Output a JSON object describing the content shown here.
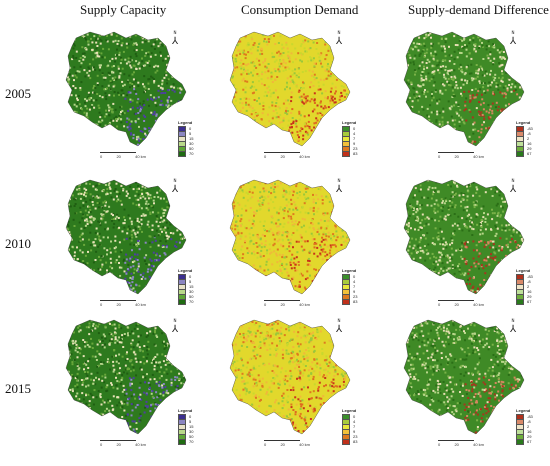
{
  "columns": [
    "Supply Capacity",
    "Consumption Demand",
    "Supply-demand Difference"
  ],
  "years": [
    "2005",
    "2010",
    "2015"
  ],
  "north_label": "N",
  "north_arrow_glyph": "⅄",
  "legend_title": "Legend",
  "scale_labels": [
    "0",
    "20",
    "40 km"
  ],
  "legends": {
    "supply": {
      "values": [
        "0",
        "5",
        "15",
        "30",
        "50",
        "70"
      ],
      "colors": [
        "#3c2f8f",
        "#8b86c2",
        "#e8e3c8",
        "#b9d98a",
        "#5ea636",
        "#1f6b12"
      ]
    },
    "demand": {
      "values": [
        "0",
        "4",
        "7",
        "9",
        "23",
        "83"
      ],
      "colors": [
        "#3a8f2a",
        "#a8cc3c",
        "#e8e83a",
        "#f2c13a",
        "#de7a1f",
        "#c0301a"
      ]
    },
    "diff": {
      "values": [
        "-83",
        "-8",
        "2",
        "16",
        "29",
        "67"
      ],
      "colors": [
        "#b0301c",
        "#d98a6a",
        "#f1e6c8",
        "#bfe09a",
        "#6fae3c",
        "#2a7a1c"
      ]
    }
  },
  "map_palettes": {
    "supply": {
      "base": "#2e7a1e",
      "speck": [
        "#e9e2b8",
        "#b6d58c",
        "#6aa83c",
        "#1f5e12"
      ],
      "hot": [
        "#4f3fa0",
        "#8c86c4"
      ]
    },
    "demand": {
      "base": "#e2d82c",
      "speck": [
        "#c9d82e",
        "#f0b83a",
        "#de7a1f",
        "#9ac83a"
      ],
      "hot": [
        "#c8341a",
        "#de6a1f"
      ]
    },
    "diff": {
      "base": "#3f8a26",
      "speck": [
        "#b8d68a",
        "#e8dfb4",
        "#2a6e16",
        "#7ab248"
      ],
      "hot": [
        "#a8351e",
        "#d48860"
      ]
    }
  }
}
